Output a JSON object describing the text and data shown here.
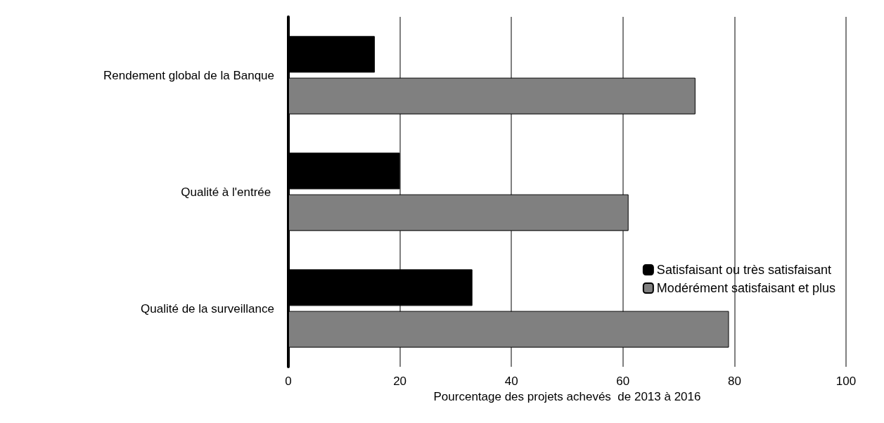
{
  "chart_data": {
    "type": "bar",
    "orientation": "horizontal",
    "xlabel": "Pourcentage des projets achevés  de 2013 à 2016",
    "categories": [
      "Rendement global de la Banque",
      "Qualité à l'entrée ",
      "Qualité de la surveillance"
    ],
    "series": [
      {
        "name": "Satisfaisant ou très satisfaisant",
        "color": "#000000",
        "values": [
          15.5,
          20,
          33
        ]
      },
      {
        "name": "Modérément satisfaisant et plus",
        "color": "#808080",
        "values": [
          73,
          61,
          79
        ]
      }
    ],
    "xlim": [
      0,
      100
    ],
    "xticks": [
      0,
      20,
      40,
      60,
      80,
      100
    ],
    "grid": "x",
    "legend": "bottom right"
  }
}
